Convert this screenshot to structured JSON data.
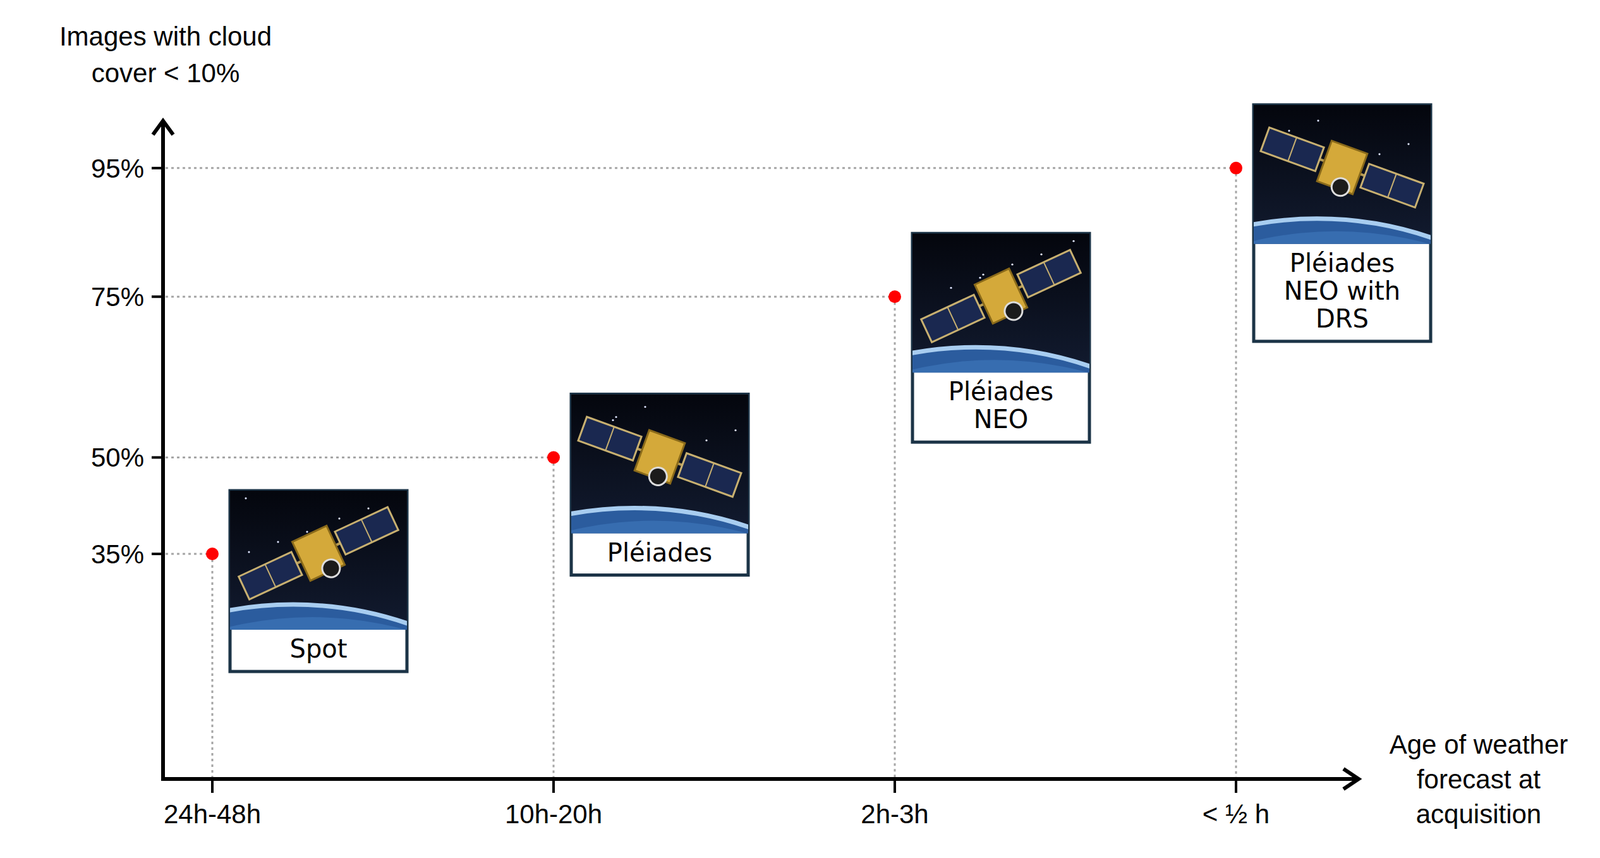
{
  "chart_data": {
    "type": "scatter",
    "x_label": "Age of weather forecast at acquisition",
    "y_label": "Images with cloud cover < 10%",
    "categories": [
      "24h-48h",
      "10h-20h",
      "2h-3h",
      "< ½ h"
    ],
    "values": [
      35,
      50,
      75,
      95
    ],
    "labels": [
      "Spot",
      "Pléiades",
      "Pléiades NEO",
      "Pléiades NEO with DRS"
    ],
    "color": "#ff0000",
    "marker": "circle",
    "ylim": [
      0,
      100
    ],
    "yticks": [
      {
        "value": 35,
        "label": "35%"
      },
      {
        "value": 50,
        "label": "50%"
      },
      {
        "value": 75,
        "label": "75%"
      },
      {
        "value": 95,
        "label": "95%"
      }
    ]
  }
}
